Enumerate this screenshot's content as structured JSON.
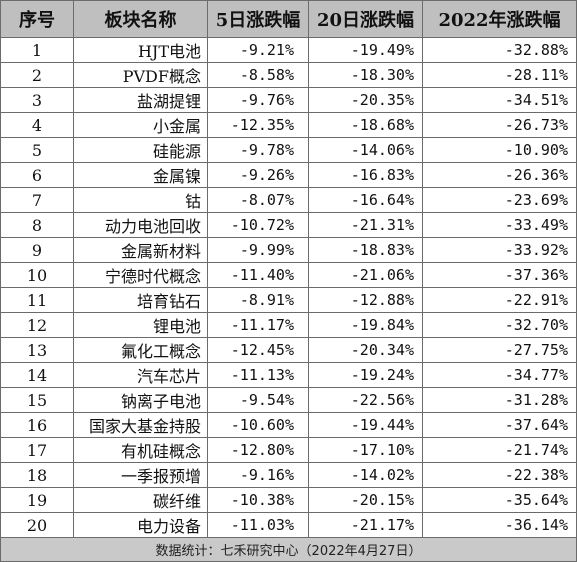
{
  "headers": [
    "序号",
    "板块名称",
    "5日涨跌幅",
    "20日涨跌幅",
    "2022年涨跌幅"
  ],
  "rows": [
    {
      "no": "1",
      "name": "HJT电池",
      "d5": "-9.21%",
      "d20": "-19.49%",
      "ytd": "-32.88%"
    },
    {
      "no": "2",
      "name": "PVDF概念",
      "d5": "-8.58%",
      "d20": "-18.30%",
      "ytd": "-28.11%"
    },
    {
      "no": "3",
      "name": "盐湖提锂",
      "d5": "-9.76%",
      "d20": "-20.35%",
      "ytd": "-34.51%"
    },
    {
      "no": "4",
      "name": "小金属",
      "d5": "-12.35%",
      "d20": "-18.68%",
      "ytd": "-26.73%"
    },
    {
      "no": "5",
      "name": "硅能源",
      "d5": "-9.78%",
      "d20": "-14.06%",
      "ytd": "-10.90%"
    },
    {
      "no": "6",
      "name": "金属镍",
      "d5": "-9.26%",
      "d20": "-16.83%",
      "ytd": "-26.36%"
    },
    {
      "no": "7",
      "name": "钴",
      "d5": "-8.07%",
      "d20": "-16.64%",
      "ytd": "-23.69%"
    },
    {
      "no": "8",
      "name": "动力电池回收",
      "d5": "-10.72%",
      "d20": "-21.31%",
      "ytd": "-33.49%"
    },
    {
      "no": "9",
      "name": "金属新材料",
      "d5": "-9.99%",
      "d20": "-18.83%",
      "ytd": "-33.92%"
    },
    {
      "no": "10",
      "name": "宁德时代概念",
      "d5": "-11.40%",
      "d20": "-21.06%",
      "ytd": "-37.36%"
    },
    {
      "no": "11",
      "name": "培育钻石",
      "d5": "-8.91%",
      "d20": "-12.88%",
      "ytd": "-22.91%"
    },
    {
      "no": "12",
      "name": "锂电池",
      "d5": "-11.17%",
      "d20": "-19.84%",
      "ytd": "-32.70%"
    },
    {
      "no": "13",
      "name": "氟化工概念",
      "d5": "-12.45%",
      "d20": "-20.34%",
      "ytd": "-27.75%"
    },
    {
      "no": "14",
      "name": "汽车芯片",
      "d5": "-11.13%",
      "d20": "-19.24%",
      "ytd": "-34.77%"
    },
    {
      "no": "15",
      "name": "钠离子电池",
      "d5": "-9.54%",
      "d20": "-22.56%",
      "ytd": "-31.28%"
    },
    {
      "no": "16",
      "name": "国家大基金持股",
      "d5": "-10.60%",
      "d20": "-19.44%",
      "ytd": "-37.64%"
    },
    {
      "no": "17",
      "name": "有机硅概念",
      "d5": "-12.80%",
      "d20": "-17.10%",
      "ytd": "-21.74%"
    },
    {
      "no": "18",
      "name": "一季报预增",
      "d5": "-9.16%",
      "d20": "-14.02%",
      "ytd": "-22.38%"
    },
    {
      "no": "19",
      "name": "碳纤维",
      "d5": "-10.38%",
      "d20": "-20.15%",
      "ytd": "-35.64%"
    },
    {
      "no": "20",
      "name": "电力设备",
      "d5": "-11.03%",
      "d20": "-21.17%",
      "ytd": "-36.14%"
    }
  ],
  "footer": "数据统计：七禾研究中心（2022年4月27日）",
  "colors": {
    "header_bg": "#bfbfbf",
    "footer_bg": "#c9c9c9",
    "border": "#6b6b6b"
  }
}
